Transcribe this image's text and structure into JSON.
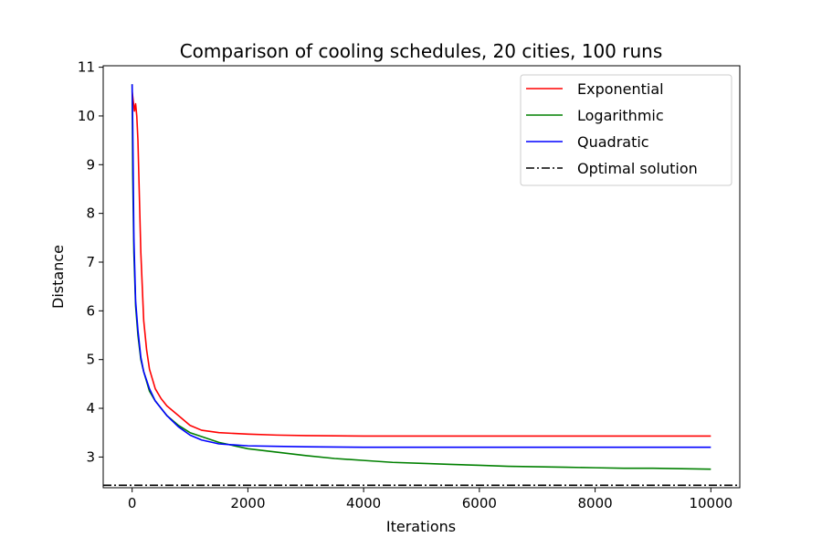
{
  "chart_data": {
    "type": "line",
    "title": "Comparison of cooling schedules, 20 cities, 100 runs",
    "xlabel": "Iterations",
    "ylabel": "Distance",
    "xlim": [
      -500,
      10500
    ],
    "ylim": [
      2.37,
      11.03
    ],
    "xticks": [
      0,
      2000,
      4000,
      6000,
      8000,
      10000
    ],
    "yticks": [
      3,
      4,
      5,
      6,
      7,
      8,
      9,
      10,
      11
    ],
    "legend_position": "top-right",
    "grid": false,
    "series": [
      {
        "name": "Exponential",
        "color": "#ff0000",
        "x": [
          0,
          20,
          40,
          60,
          80,
          100,
          150,
          200,
          250,
          300,
          400,
          500,
          600,
          800,
          1000,
          1200,
          1500,
          2000,
          2500,
          3000,
          4000,
          5000,
          6000,
          7000,
          8000,
          9000,
          10000
        ],
        "y": [
          10.5,
          10.3,
          10.1,
          10.25,
          10.0,
          9.5,
          7.2,
          5.8,
          5.2,
          4.8,
          4.4,
          4.2,
          4.05,
          3.85,
          3.65,
          3.55,
          3.5,
          3.47,
          3.45,
          3.44,
          3.43,
          3.43,
          3.43,
          3.43,
          3.43,
          3.43,
          3.43
        ]
      },
      {
        "name": "Logarithmic",
        "color": "#008000",
        "x": [
          0,
          10,
          30,
          60,
          100,
          150,
          200,
          300,
          400,
          500,
          600,
          800,
          1000,
          1200,
          1500,
          2000,
          2500,
          3000,
          3500,
          4000,
          4500,
          5000,
          5500,
          6000,
          6500,
          7000,
          7500,
          8000,
          8500,
          9000,
          9500,
          10000
        ],
        "y": [
          10.65,
          8.8,
          7.2,
          6.1,
          5.5,
          5.0,
          4.75,
          4.35,
          4.15,
          4.0,
          3.85,
          3.65,
          3.5,
          3.42,
          3.3,
          3.17,
          3.1,
          3.03,
          2.97,
          2.93,
          2.89,
          2.87,
          2.85,
          2.83,
          2.81,
          2.8,
          2.79,
          2.78,
          2.77,
          2.77,
          2.76,
          2.75
        ]
      },
      {
        "name": "Quadratic",
        "color": "#0000ff",
        "x": [
          0,
          10,
          30,
          60,
          100,
          150,
          200,
          300,
          400,
          500,
          600,
          800,
          1000,
          1200,
          1500,
          2000,
          2500,
          3000,
          4000,
          5000,
          6000,
          7000,
          8000,
          9000,
          10000
        ],
        "y": [
          10.65,
          9.8,
          7.5,
          6.2,
          5.6,
          5.05,
          4.75,
          4.4,
          4.15,
          4.0,
          3.85,
          3.62,
          3.45,
          3.35,
          3.27,
          3.23,
          3.22,
          3.21,
          3.2,
          3.2,
          3.2,
          3.2,
          3.2,
          3.2,
          3.2
        ]
      },
      {
        "name": "Optimal solution",
        "color": "#000000",
        "dash": "dashdot",
        "x": [
          -500,
          10500
        ],
        "y": [
          2.42,
          2.42
        ]
      }
    ]
  }
}
